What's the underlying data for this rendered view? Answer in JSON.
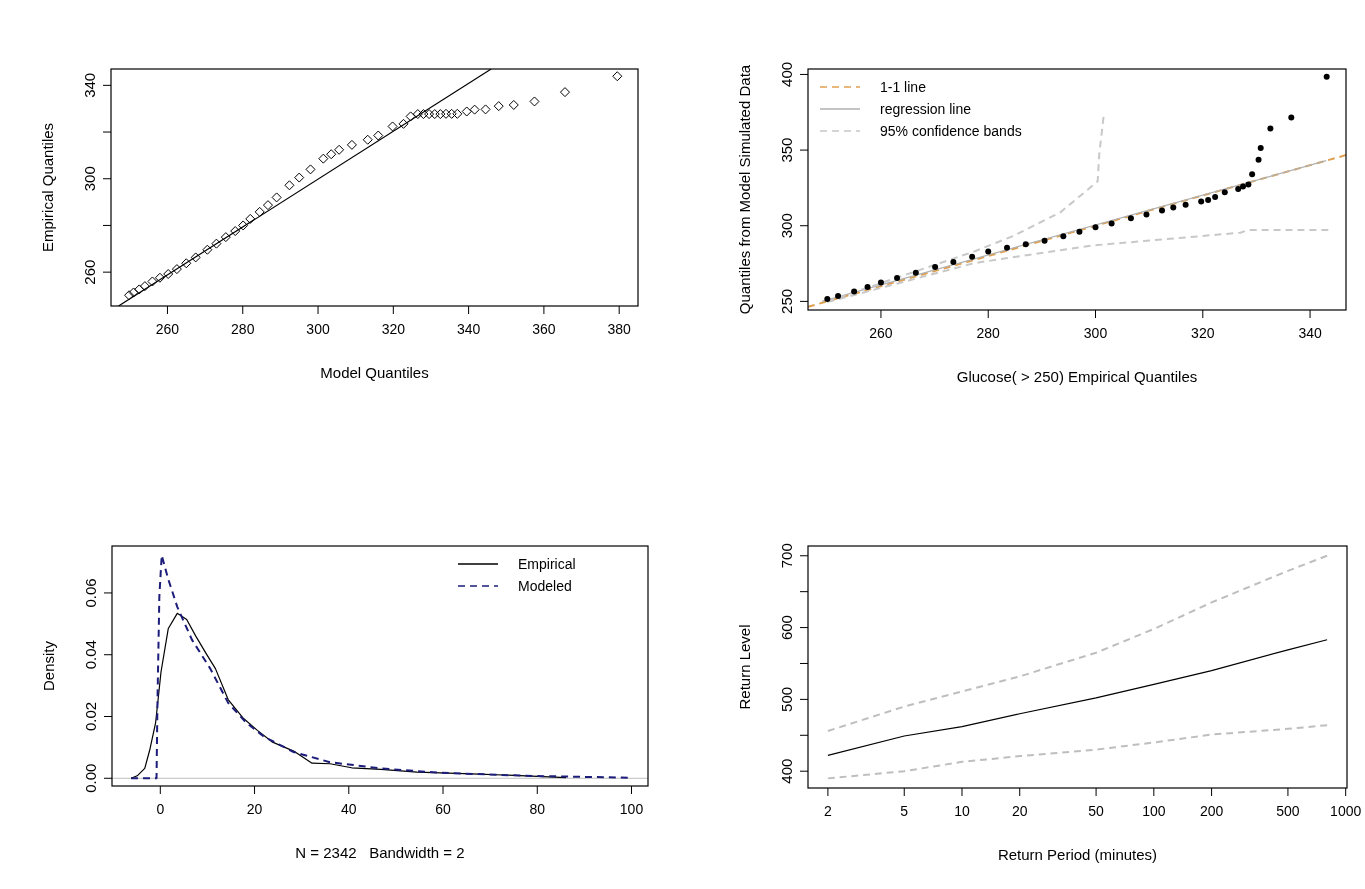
{
  "chart_data": [
    {
      "type": "scatter",
      "xlabel": "Model Quantiles",
      "ylabel": "Empirical Quantiles",
      "xlim": [
        245,
        385
      ],
      "ylim": [
        245.5,
        347
      ],
      "xticks": [
        260,
        280,
        300,
        320,
        340,
        360,
        380
      ],
      "yticks": [
        260,
        {
          "value": 280,
          "label": null
        },
        300,
        {
          "value": 320,
          "label": null
        },
        340
      ],
      "legend": false,
      "grid": false,
      "series": [
        {
          "marker": "diamond",
          "color": "#000000",
          "x": [
            249.8,
            251,
            252.5,
            254,
            256,
            258,
            260.2,
            262.5,
            265,
            267.5,
            270.6,
            273,
            275.5,
            278,
            280.1,
            282,
            284.5,
            286.7,
            289,
            292.4,
            295,
            298,
            301.4,
            303.5,
            305.6,
            309,
            313.2,
            316,
            319.8,
            322.7,
            324.6,
            326.5,
            328,
            329.5,
            331,
            332.5,
            334,
            335.5,
            337,
            339.5,
            341.6,
            344.5,
            348,
            352,
            357.5,
            365.6,
            379.5
          ],
          "values": [
            250.1,
            251.3,
            252.6,
            254,
            256,
            257.6,
            259.2,
            261.3,
            263.8,
            266.3,
            269.6,
            272.2,
            275,
            277.6,
            280,
            282.8,
            285.8,
            288.7,
            292,
            297.2,
            300.5,
            304,
            308.6,
            310.5,
            312.4,
            314.5,
            316.7,
            318.5,
            322.4,
            323.5,
            326.7,
            327.7,
            327.7,
            327.7,
            327.7,
            327.7,
            327.8,
            327.8,
            327.8,
            328.8,
            329.6,
            329.7,
            331.1,
            331.6,
            333.1,
            337.1,
            343.9
          ]
        },
        {
          "type": "line",
          "color": "#000000",
          "line_style": "solid",
          "x": [
            247,
            346
          ],
          "values": [
            245.5,
            347
          ]
        }
      ]
    },
    {
      "type": "scatter",
      "xlabel": "Glucose( > 250) Empirical Quantiles",
      "ylabel": "Quantiles from Model Simulated Data",
      "xlim": [
        246.4,
        346.7
      ],
      "ylim": [
        244.3,
        403.6
      ],
      "xticks": [
        260,
        280,
        300,
        320,
        340
      ],
      "yticks": [
        250,
        300,
        350,
        400
      ],
      "legend": "top left",
      "grid": false,
      "series": [
        {
          "type": "line",
          "name": "1-1 line",
          "color": "#e0a050",
          "line_style": "dashed",
          "x": [
            246.4,
            346.7
          ],
          "values": [
            246.4,
            346.7
          ]
        },
        {
          "type": "line",
          "name": "regression line",
          "color": "#b0b0b0",
          "line_style": "solid",
          "x": [
            249,
            343
          ],
          "values": [
            250,
            343
          ]
        },
        {
          "type": "line",
          "name": "95% confidence bands",
          "color": "#c8c8c8",
          "line_style": "dashed",
          "x": [
            250,
            277.4,
            284.7,
            293.4,
            297.8,
            300.4,
            300.7,
            301.5
          ],
          "values": [
            250,
            283,
            293.3,
            308.8,
            321.6,
            329.4,
            347.4,
            371.9
          ]
        },
        {
          "type": "line",
          "color": "#c8c8c8",
          "line_style": "dashed",
          "x": [
            250,
            277.4,
            299.3,
            327,
            328.5,
            343.4
          ],
          "values": [
            249.5,
            275.3,
            286.9,
            295.4,
            297.2,
            297.2
          ]
        },
        {
          "marker": "circle",
          "color": "#000000",
          "x": [
            250,
            252,
            255,
            257.5,
            260,
            263,
            266.5,
            270.1,
            273.5,
            277,
            280,
            283.5,
            287,
            290.5,
            294,
            297,
            300,
            303,
            306.6,
            309.5,
            312.4,
            314.5,
            316.8,
            319.7,
            321,
            322.3,
            324.1,
            326.6,
            327.5,
            328.5,
            329.2,
            330.4,
            330.8,
            332.6,
            336.5,
            343.1
          ],
          "values": [
            251.5,
            253.5,
            256.5,
            259.5,
            262.4,
            265.5,
            269,
            272.7,
            276,
            279.5,
            283,
            285.5,
            287.8,
            290,
            293,
            296,
            299,
            301.5,
            304.9,
            307.5,
            310,
            312,
            313.9,
            316,
            317,
            319,
            322.2,
            324.2,
            326,
            327.3,
            334,
            343.6,
            351.3,
            364.2,
            371.6,
            398.5
          ]
        }
      ]
    },
    {
      "type": "line",
      "xlabel": "N = 2342   Bandwidth = 2",
      "ylabel": "Density",
      "xlim": [
        -10.25,
        103.5
      ],
      "ylim": [
        -0.0025,
        0.0752
      ],
      "xticks": [
        0,
        20,
        40,
        60,
        80,
        100
      ],
      "yticks": [
        {
          "value": 0,
          "label": "0.00"
        },
        {
          "value": 0.02,
          "label": "0.02"
        },
        {
          "value": 0.04,
          "label": "0.04"
        },
        {
          "value": 0.06,
          "label": "0.06"
        }
      ],
      "legend": "top right",
      "grid": false,
      "ref_lines": [
        {
          "axis": "y",
          "value": 0,
          "color": "#bebebe"
        }
      ],
      "series": [
        {
          "name": "Empirical",
          "color": "#000000",
          "line_style": "solid",
          "x": [
            -6.2,
            -4.9,
            -3.3,
            -2.2,
            -1,
            0.15,
            1.7,
            3.6,
            5.6,
            7.5,
            9.8,
            11.7,
            14.4,
            17.5,
            20.6,
            23.7,
            28.3,
            32.2,
            36,
            40.6,
            46.8,
            54.5,
            66.1,
            77.6,
            86.1
          ],
          "values": [
            0,
            0.0008,
            0.0032,
            0.0094,
            0.0179,
            0.0344,
            0.0485,
            0.0534,
            0.0514,
            0.0461,
            0.0402,
            0.0355,
            0.0255,
            0.0196,
            0.0155,
            0.0118,
            0.0088,
            0.0049,
            0.0047,
            0.0034,
            0.0029,
            0.002,
            0.0014,
            0.0008,
            0.0002
          ]
        },
        {
          "name": "Modeled",
          "color": "#1c1c7a",
          "line_style": "dashed",
          "x": [
            -6.2,
            -0.8,
            -0.6,
            -0.2,
            0.3,
            1.7,
            3.6,
            6.7,
            10.6,
            14.4,
            18.3,
            22.1,
            28.3,
            36,
            46.8,
            59.1,
            77.6,
            99.2
          ],
          "values": [
            0,
            0,
            0.025,
            0.059,
            0.0722,
            0.0644,
            0.0555,
            0.0449,
            0.0355,
            0.0244,
            0.0179,
            0.0134,
            0.0085,
            0.0052,
            0.0032,
            0.0018,
            0.0008,
            0.0002
          ]
        }
      ]
    },
    {
      "type": "line",
      "xlabel": "Return Period (minutes)",
      "ylabel": "Return Level",
      "log": "x",
      "xlim": [
        1.575,
        1016
      ],
      "ylim": [
        376.6,
        713.6
      ],
      "xticks": [
        2,
        5,
        10,
        20,
        50,
        100,
        200,
        500,
        1000
      ],
      "yticks": [
        400,
        {
          "value": 450,
          "label": null
        },
        500,
        {
          "value": 550,
          "label": null
        },
        600,
        {
          "value": 650,
          "label": null
        },
        700
      ],
      "legend": false,
      "grid": false,
      "series": [
        {
          "color": "#000000",
          "line_style": "solid",
          "x": [
            2,
            5,
            10,
            20,
            50,
            100,
            200,
            500,
            800
          ],
          "values": [
            422,
            449,
            462,
            480,
            502,
            521,
            540,
            569,
            583
          ]
        },
        {
          "color": "#bebebe",
          "line_style": "dashed",
          "x": [
            2,
            5,
            10,
            20,
            50,
            100,
            200,
            500,
            800
          ],
          "values": [
            456,
            490,
            511,
            532,
            565,
            598,
            635,
            679,
            700
          ]
        },
        {
          "color": "#bebebe",
          "line_style": "dashed",
          "x": [
            2,
            5,
            10,
            20,
            50,
            100,
            200,
            500,
            800
          ],
          "values": [
            390,
            400,
            413,
            421,
            430,
            440,
            451,
            459,
            464
          ]
        }
      ]
    }
  ]
}
